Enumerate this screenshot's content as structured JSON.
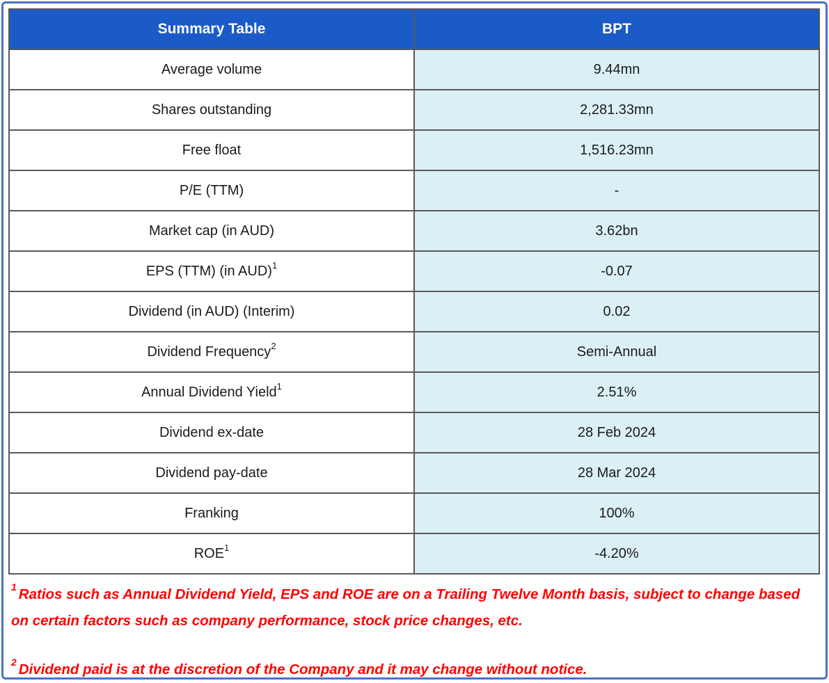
{
  "colors": {
    "header_bg": "#1A5BC8",
    "header_text": "#FFFFFF",
    "value_cell_bg": "#DBF0F5",
    "cell_border": "#595959",
    "outer_frame": "#4A72C4",
    "footnote_text": "#FF0000"
  },
  "table": {
    "header": {
      "title": "Summary Table",
      "ticker": "BPT"
    },
    "rows": [
      {
        "label": "Average volume",
        "sup": "",
        "value": "9.44mn"
      },
      {
        "label": "Shares outstanding",
        "sup": "",
        "value": "2,281.33mn"
      },
      {
        "label": "Free float",
        "sup": "",
        "value": "1,516.23mn"
      },
      {
        "label": "P/E (TTM)",
        "sup": "",
        "value": "-"
      },
      {
        "label": "Market cap (in AUD)",
        "sup": "",
        "value": "3.62bn"
      },
      {
        "label": "EPS (TTM) (in AUD)",
        "sup": "1",
        "value": "-0.07"
      },
      {
        "label": "Dividend (in AUD) (Interim)",
        "sup": "",
        "value": "0.02"
      },
      {
        "label": "Dividend Frequency",
        "sup": "2",
        "value": "Semi-Annual"
      },
      {
        "label": "Annual Dividend Yield",
        "sup": "1",
        "value": "2.51%"
      },
      {
        "label": "Dividend ex-date",
        "sup": "",
        "value": "28 Feb 2024"
      },
      {
        "label": "Dividend pay-date",
        "sup": "",
        "value": "28 Mar 2024"
      },
      {
        "label": "Franking",
        "sup": "",
        "value": "100%"
      },
      {
        "label": "ROE",
        "sup": "1",
        "value": "-4.20%"
      }
    ]
  },
  "footnotes": [
    {
      "sup": "1",
      "text": "Ratios such as Annual Dividend Yield, EPS and ROE are on a Trailing Twelve Month basis, subject to change based on certain factors such as company performance, stock price changes, etc."
    },
    {
      "sup": "2",
      "text": "Dividend paid is at the discretion of the Company and it may change without notice."
    }
  ]
}
